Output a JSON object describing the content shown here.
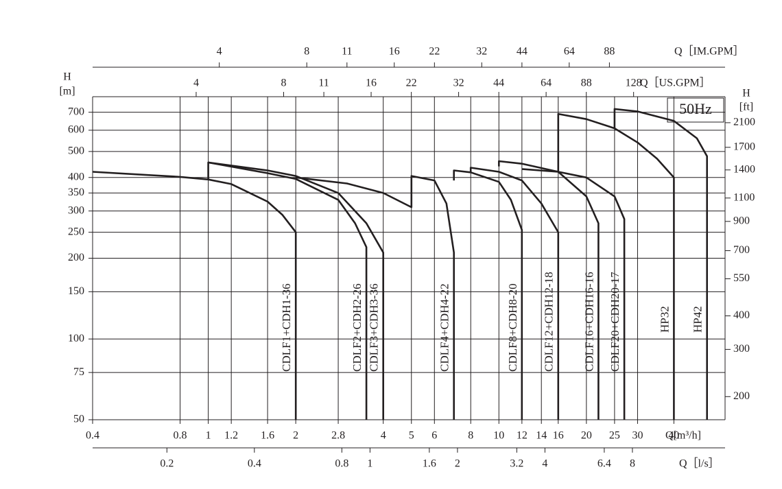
{
  "chart_data": {
    "type": "line",
    "log_x": true,
    "log_y": true,
    "grid": true,
    "color": "#231f20",
    "annotation": "50Hz",
    "xlabel": "Q[m³/h]",
    "ylabel": "H",
    "ylabel_unit": "[m]",
    "y2label": "H",
    "y2label_unit": "[ft]",
    "xlim": [
      0.4,
      60
    ],
    "xticks": [
      0.4,
      0.8,
      1,
      1.2,
      1.6,
      2,
      2.8,
      4,
      5,
      6,
      8,
      10,
      12,
      14,
      16,
      20,
      25,
      30,
      40
    ],
    "ylim": [
      50,
      800
    ],
    "yticks": [
      50,
      75,
      100,
      150,
      200,
      250,
      300,
      350,
      400,
      500,
      600,
      700
    ],
    "y2lim": [
      164,
      2625
    ],
    "y2ticks": [
      200,
      300,
      400,
      550,
      700,
      900,
      1100,
      1400,
      1700,
      2100
    ],
    "im_axis": {
      "label": "Q［IM.GPM］",
      "xlim": [
        1.466,
        220
      ],
      "xticks": [
        4,
        8,
        11,
        16,
        22,
        32,
        44,
        64,
        88
      ]
    },
    "us_axis": {
      "label": "Q［US.GPM］",
      "xlim": [
        1.761,
        264.2
      ],
      "xticks": [
        4,
        8,
        11,
        16,
        22,
        32,
        44,
        64,
        88,
        128
      ]
    },
    "ls_axis": {
      "label": "Q［l/s］",
      "xlim": [
        0.111,
        16.67
      ],
      "xticks": [
        0.2,
        0.4,
        0.8,
        1,
        1.6,
        2,
        3.2,
        4,
        6.4,
        8
      ]
    },
    "series": [
      {
        "name": "CDLF1+CDH1-36",
        "x": [
          0.4,
          0.8,
          1,
          1.2,
          1.6,
          1.8,
          2,
          2
        ],
        "values": [
          420,
          402,
          393,
          378,
          325,
          290,
          250,
          50
        ]
      },
      {
        "name": "CDLF2+CDH2-26",
        "x": [
          1,
          1,
          1.6,
          2,
          2.8,
          3.2,
          3.5,
          3.5
        ],
        "values": [
          392,
          455,
          415,
          395,
          330,
          270,
          220,
          50
        ]
      },
      {
        "name": "CDLF3+CDH3-36",
        "x": [
          1,
          1.6,
          2,
          2.8,
          3.5,
          4,
          4
        ],
        "values": [
          455,
          425,
          405,
          350,
          270,
          210,
          50
        ]
      },
      {
        "name": "CDLF4+CDH4-22",
        "x": [
          2,
          3,
          4,
          5,
          5,
          6,
          6.6,
          7,
          7
        ],
        "values": [
          400,
          380,
          350,
          310,
          405,
          390,
          320,
          210,
          50
        ]
      },
      {
        "name": "CDLF8+CDH8-20",
        "x": [
          7,
          7,
          8,
          10,
          11,
          12,
          12
        ],
        "values": [
          390,
          425,
          418,
          385,
          330,
          255,
          50
        ]
      },
      {
        "name": "CDLF12+CDH12-18",
        "x": [
          8,
          8,
          10,
          12,
          14,
          16,
          16
        ],
        "values": [
          418,
          435,
          420,
          390,
          320,
          250,
          50
        ]
      },
      {
        "name": "CDLF16+CDH16-16",
        "x": [
          10,
          10,
          12,
          16,
          20,
          22,
          22
        ],
        "values": [
          440,
          460,
          450,
          420,
          340,
          270,
          50
        ]
      },
      {
        "name": "CDLF20+CDH20-17",
        "x": [
          12,
          16,
          20,
          25,
          27,
          27
        ],
        "values": [
          430,
          420,
          400,
          340,
          280,
          50
        ]
      },
      {
        "name": "HP32",
        "x": [
          16,
          16,
          20,
          25,
          30,
          35,
          40,
          40
        ],
        "values": [
          420,
          690,
          660,
          610,
          540,
          470,
          400,
          50
        ]
      },
      {
        "name": "HP42",
        "x": [
          25,
          25,
          30,
          40,
          48,
          52,
          52
        ],
        "values": [
          610,
          720,
          705,
          650,
          560,
          480,
          50
        ]
      }
    ]
  }
}
